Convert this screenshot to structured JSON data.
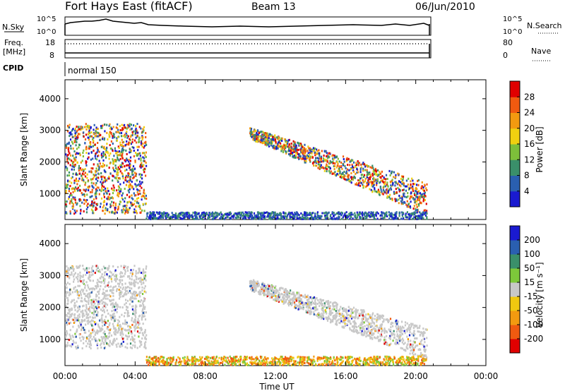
{
  "header": {
    "station": "Fort Hays East (fitACF)",
    "beam": "Beam 13",
    "date": "06/Jun/2010"
  },
  "status_panel": {
    "nsky_label": "N.Sky",
    "nsky_ticks": [
      "10^5",
      "10^0"
    ],
    "nsearch_label": "N.Search",
    "freq_label_line1": "Freq.",
    "freq_label_line2": "[MHz]",
    "freq_ticks": [
      "18",
      "8"
    ],
    "nave_label": "Nave",
    "nave_ticks": [
      "80",
      "0"
    ],
    "cpid_label": "CPID",
    "mode_text": "normal 150"
  },
  "chart_data": [
    {
      "type": "heatmap",
      "name": "power",
      "ylabel": "Slant Range [km]",
      "xlabel": "",
      "ylim": [
        180,
        4600
      ],
      "yticks": [
        1000,
        2000,
        3000,
        4000
      ],
      "colorbar": {
        "label": "Power [dB]",
        "ticks": [
          "4",
          "8",
          "12",
          "16",
          "20",
          "24",
          "28"
        ],
        "range": [
          0,
          32
        ],
        "colors": [
          "#1a1ad0",
          "#2a5fb0",
          "#3a8f6a",
          "#7dbf3a",
          "#f0d010",
          "#f39a10",
          "#f05a10",
          "#e00000"
        ]
      },
      "echo_regions": [
        {
          "t0": 0.0,
          "t1": 4.6,
          "r0": 350,
          "r1": 3200,
          "level": "high"
        },
        {
          "t0": 10.5,
          "t1": 20.6,
          "r0": 450,
          "r1": 2900,
          "level": "high"
        },
        {
          "t0": 4.6,
          "t1": 20.6,
          "r0": 180,
          "r1": 400,
          "level": "low"
        }
      ]
    },
    {
      "type": "heatmap",
      "name": "velocity",
      "ylabel": "Slant Range [km]",
      "xlabel": "Time UT",
      "ylim": [
        180,
        4600
      ],
      "yticks": [
        1000,
        2000,
        3000,
        4000
      ],
      "xticks": [
        "00:00",
        "04:00",
        "08:00",
        "12:00",
        "16:00",
        "20:00",
        "00:00"
      ],
      "colorbar": {
        "label": "Velocity [m s⁻¹]",
        "ticks": [
          "200",
          "100",
          "50",
          "15",
          "-15",
          "-50",
          "-100",
          "-200"
        ],
        "colors": [
          "#1a1ad0",
          "#2a5fb0",
          "#3a8f6a",
          "#7dc83a",
          "#c8c8c8",
          "#f0c810",
          "#f39a10",
          "#f05a10",
          "#e00000"
        ]
      },
      "echo_regions": [
        {
          "t0": 0.0,
          "t1": 4.6,
          "r0": 700,
          "r1": 3300,
          "class": "ground-scatter"
        },
        {
          "t0": 10.5,
          "t1": 20.6,
          "r0": 500,
          "r1": 2700,
          "class": "ground-scatter"
        },
        {
          "t0": 4.6,
          "t1": 20.6,
          "r0": 180,
          "r1": 450,
          "class": "ionospheric"
        }
      ]
    }
  ]
}
